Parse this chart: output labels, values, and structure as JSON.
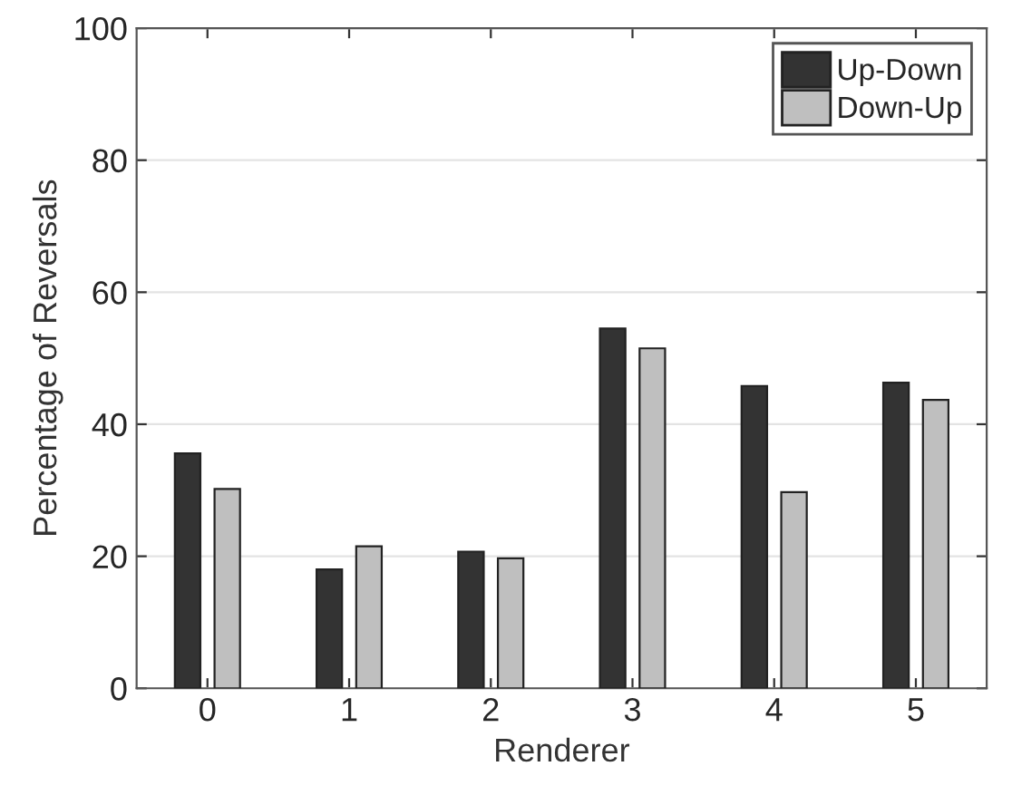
{
  "chart_data": {
    "type": "bar",
    "xlabel": "Renderer",
    "ylabel": "Percentage of Reversals",
    "categories": [
      "0",
      "1",
      "2",
      "3",
      "4",
      "5"
    ],
    "series": [
      {
        "name": "Up-Down",
        "color": "#333333",
        "values": [
          35.6,
          18.0,
          20.7,
          54.5,
          45.8,
          46.3
        ]
      },
      {
        "name": "Down-Up",
        "color": "#bfbfbf",
        "values": [
          30.2,
          21.5,
          19.7,
          51.5,
          29.7,
          43.7
        ]
      }
    ],
    "ylim": [
      0,
      100
    ],
    "yticks": [
      0,
      20,
      40,
      60,
      80,
      100
    ],
    "grid": "y",
    "legend": "top right"
  }
}
